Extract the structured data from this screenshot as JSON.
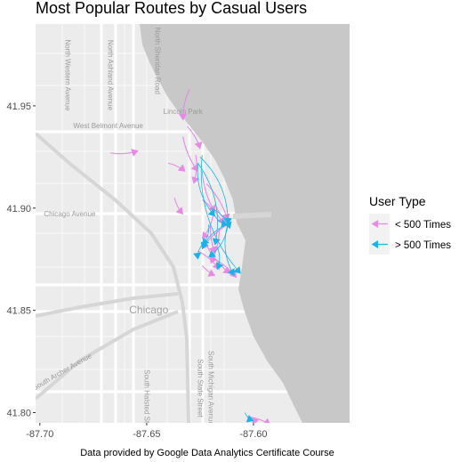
{
  "chart_data": {
    "type": "map-routes",
    "title": "Most Popular Routes by Casual Users",
    "caption": "Data provided by Google Data Analytics Certificate Course",
    "x_ticks": [
      -87.7,
      -87.65,
      -87.6
    ],
    "x_tick_labels": [
      "-87.70",
      "-87.65",
      "-87.60"
    ],
    "y_ticks": [
      41.8,
      41.85,
      41.9,
      41.95
    ],
    "y_tick_labels": [
      "41.80",
      "41.85",
      "41.90",
      "41.95"
    ],
    "xlim": [
      -87.702,
      -87.555
    ],
    "ylim": [
      41.795,
      41.99
    ],
    "legend": {
      "title": "User Type",
      "position": "right",
      "entries": [
        {
          "label": "< 500 Times",
          "color": "#e68ae6"
        },
        {
          "label": "> 500 Times",
          "color": "#1ab3e6"
        }
      ]
    },
    "map_labels": [
      {
        "text": "North Sheridan Road",
        "lon": -87.646,
        "lat": 41.972,
        "rot": 90
      },
      {
        "text": "North Ashland Avenue",
        "lon": -87.668,
        "lat": 41.965,
        "rot": 90
      },
      {
        "text": "North Western Avenue",
        "lon": -87.688,
        "lat": 41.965,
        "rot": 90
      },
      {
        "text": "West Belmont Avenue",
        "lon": -87.668,
        "lat": 41.939,
        "rot": 0
      },
      {
        "text": "Chicago Avenue",
        "lon": -87.686,
        "lat": 41.896,
        "rot": 0
      },
      {
        "text": "Lincoln Park",
        "lon": -87.633,
        "lat": 41.946,
        "rot": 0
      },
      {
        "text": "Chicago",
        "lon": -87.649,
        "lat": 41.8485,
        "rot": 0
      },
      {
        "text": "South Archer Avenue",
        "lon": -87.689,
        "lat": 41.819,
        "rot": -30
      },
      {
        "text": "South State Street",
        "lon": -87.626,
        "lat": 41.812,
        "rot": 90
      },
      {
        "text": "South Michigan Avenue",
        "lon": -87.621,
        "lat": 41.812,
        "rot": 90
      },
      {
        "text": "South Halsted Street",
        "lon": -87.651,
        "lat": 41.805,
        "rot": 90
      }
    ],
    "series": [
      {
        "name": "< 500 Times",
        "color": "#e68ae6",
        "routes": [
          {
            "from": [
              -87.63,
              41.958
            ],
            "to": [
              -87.633,
              41.943
            ]
          },
          {
            "from": [
              -87.631,
              41.94
            ],
            "to": [
              -87.625,
              41.929
            ]
          },
          {
            "from": [
              -87.633,
              41.935
            ],
            "to": [
              -87.626,
              41.918
            ]
          },
          {
            "from": [
              -87.627,
              41.926
            ],
            "to": [
              -87.628,
              41.912
            ]
          },
          {
            "from": [
              -87.624,
              41.918
            ],
            "to": [
              -87.618,
              41.898
            ]
          },
          {
            "from": [
              -87.622,
              41.912
            ],
            "to": [
              -87.612,
              41.894
            ]
          },
          {
            "from": [
              -87.667,
              41.927
            ],
            "to": [
              -87.654,
              41.928
            ]
          },
          {
            "from": [
              -87.64,
              41.922
            ],
            "to": [
              -87.632,
              41.918
            ]
          },
          {
            "from": [
              -87.637,
              41.905
            ],
            "to": [
              -87.633,
              41.897
            ]
          },
          {
            "from": [
              -87.624,
              41.904
            ],
            "to": [
              -87.614,
              41.892
            ]
          },
          {
            "from": [
              -87.618,
              41.902
            ],
            "to": [
              -87.612,
              41.893
            ]
          },
          {
            "from": [
              -87.619,
              41.896
            ],
            "to": [
              -87.624,
              41.885
            ]
          },
          {
            "from": [
              -87.62,
              41.893
            ],
            "to": [
              -87.618,
              41.878
            ]
          },
          {
            "from": [
              -87.616,
              41.89
            ],
            "to": [
              -87.62,
              41.873
            ]
          },
          {
            "from": [
              -87.612,
              41.892
            ],
            "to": [
              -87.624,
              41.88
            ]
          },
          {
            "from": [
              -87.626,
              41.879
            ],
            "to": [
              -87.616,
              41.87
            ]
          },
          {
            "from": [
              -87.623,
              41.884
            ],
            "to": [
              -87.611,
              41.868
            ]
          },
          {
            "from": [
              -87.62,
              41.876
            ],
            "to": [
              -87.608,
              41.866
            ]
          },
          {
            "from": [
              -87.624,
              41.872
            ],
            "to": [
              -87.618,
              41.867
            ]
          },
          {
            "from": [
              -87.603,
              41.798
            ],
            "to": [
              -87.592,
              41.794
            ]
          },
          {
            "from": [
              -87.599,
              41.796
            ],
            "to": [
              -87.6,
              41.794
            ]
          }
        ]
      },
      {
        "name": "> 500 Times",
        "color": "#1ab3e6",
        "routes": [
          {
            "from": [
              -87.626,
              41.922
            ],
            "to": [
              -87.618,
              41.896
            ]
          },
          {
            "from": [
              -87.625,
              41.925
            ],
            "to": [
              -87.612,
              41.892
            ]
          },
          {
            "from": [
              -87.624,
              41.926
            ],
            "to": [
              -87.606,
              41.868
            ]
          },
          {
            "from": [
              -87.626,
              41.922
            ],
            "to": [
              -87.618,
              41.882
            ]
          },
          {
            "from": [
              -87.612,
              41.892
            ],
            "to": [
              -87.624,
              41.88
            ]
          },
          {
            "from": [
              -87.612,
              41.892
            ],
            "to": [
              -87.621,
              41.876
            ]
          },
          {
            "from": [
              -87.612,
              41.892
            ],
            "to": [
              -87.609,
              41.867
            ]
          },
          {
            "from": [
              -87.621,
              41.892
            ],
            "to": [
              -87.624,
              41.882
            ]
          },
          {
            "from": [
              -87.618,
              41.896
            ],
            "to": [
              -87.612,
              41.892
            ]
          },
          {
            "from": [
              -87.617,
              41.881
            ],
            "to": [
              -87.617,
              41.87
            ]
          },
          {
            "from": [
              -87.624,
              41.882
            ],
            "to": [
              -87.626,
              41.875
            ]
          },
          {
            "from": [
              -87.62,
              41.9
            ],
            "to": [
              -87.611,
              41.89
            ]
          },
          {
            "from": [
              -87.604,
              41.8
            ],
            "to": [
              -87.6,
              41.796
            ]
          }
        ]
      }
    ],
    "grid": false,
    "basemap": true
  }
}
